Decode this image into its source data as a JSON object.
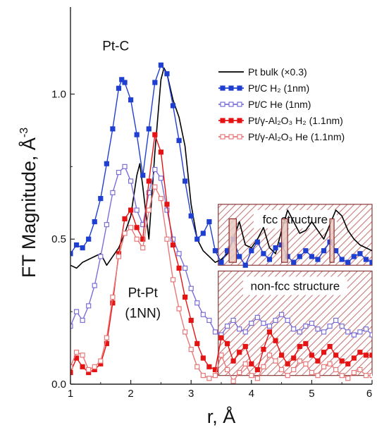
{
  "chart_data": {
    "type": "line",
    "xlabel": "r, Å",
    "ylabel": "FT Magnitude, Å",
    "ylabel_sup": "-3",
    "xlim": [
      1,
      6
    ],
    "ylim": [
      0,
      1.3
    ],
    "x_ticks": [
      1,
      2,
      3,
      4,
      5,
      6
    ],
    "y_ticks": [
      0.0,
      0.5,
      1.0
    ],
    "x_tick_labels": [
      "1",
      "2",
      "3",
      "4",
      "5",
      "6"
    ],
    "y_tick_labels": [
      "0.0",
      "0.5",
      "1.0"
    ],
    "grid": false,
    "legend_position": "upper-right",
    "annotations": [
      {
        "text": "Pt-C",
        "x": 1.75,
        "y": 1.15
      },
      {
        "text": "Pt-Pt",
        "x": 2.2,
        "y": 0.3
      },
      {
        "text": "(1NN)",
        "x": 2.2,
        "y": 0.23
      }
    ],
    "regions": [
      {
        "label": "fcc structure",
        "x0": 3.45,
        "x1": 6.0,
        "y0": 0.41,
        "y1": 0.62
      },
      {
        "label": "non-fcc structure",
        "x0": 3.45,
        "x1": 6.0,
        "y0": 0.03,
        "y1": 0.39
      }
    ],
    "bars": [
      {
        "x0": 3.63,
        "x1": 3.75,
        "y0": 0.42,
        "y1": 0.57
      },
      {
        "x0": 4.5,
        "x1": 4.6,
        "y0": 0.42,
        "y1": 0.57
      },
      {
        "x0": 5.3,
        "x1": 5.37,
        "y0": 0.42,
        "y1": 0.57
      }
    ],
    "series": [
      {
        "name": "Pt bulk (×0.3)",
        "color": "#000000",
        "marker": "none",
        "x": [
          1.0,
          1.1,
          1.2,
          1.3,
          1.4,
          1.5,
          1.6,
          1.7,
          1.8,
          1.9,
          2.0,
          2.1,
          2.15,
          2.2,
          2.3,
          2.4,
          2.5,
          2.55,
          2.6,
          2.7,
          2.8,
          2.9,
          3.0,
          3.1,
          3.2,
          3.3,
          3.4,
          3.5,
          3.6,
          3.7,
          3.8,
          3.9,
          4.0,
          4.1,
          4.2,
          4.3,
          4.4,
          4.5,
          4.6,
          4.7,
          4.8,
          4.9,
          5.0,
          5.1,
          5.2,
          5.3,
          5.4,
          5.5,
          5.6,
          5.7,
          5.8,
          5.9,
          6.0
        ],
        "y": [
          0.41,
          0.4,
          0.42,
          0.43,
          0.44,
          0.45,
          0.41,
          0.44,
          0.47,
          0.52,
          0.58,
          0.72,
          0.76,
          0.68,
          0.5,
          0.8,
          1.05,
          1.09,
          1.07,
          0.98,
          0.92,
          0.82,
          0.62,
          0.5,
          0.46,
          0.44,
          0.42,
          0.43,
          0.45,
          0.5,
          0.56,
          0.48,
          0.47,
          0.5,
          0.54,
          0.47,
          0.45,
          0.53,
          0.6,
          0.56,
          0.52,
          0.53,
          0.56,
          0.53,
          0.5,
          0.55,
          0.6,
          0.58,
          0.53,
          0.5,
          0.48,
          0.47,
          0.46
        ]
      },
      {
        "name": "Pt/C H₂ (1nm)",
        "color": "#1f3fd1",
        "marker": "filled-square",
        "x": [
          1.0,
          1.1,
          1.2,
          1.3,
          1.4,
          1.5,
          1.6,
          1.7,
          1.8,
          1.85,
          1.9,
          2.0,
          2.1,
          2.2,
          2.3,
          2.4,
          2.5,
          2.6,
          2.7,
          2.8,
          2.9,
          3.0,
          3.1,
          3.2,
          3.3,
          3.4,
          3.5,
          3.6,
          3.7,
          3.8,
          3.9,
          4.0,
          4.1,
          4.2,
          4.3,
          4.4,
          4.5,
          4.6,
          4.7,
          4.8,
          4.9,
          5.0,
          5.1,
          5.2,
          5.3,
          5.4,
          5.5,
          5.6,
          5.7,
          5.8,
          5.9,
          6.0
        ],
        "y": [
          0.45,
          0.48,
          0.47,
          0.5,
          0.56,
          0.64,
          0.76,
          0.88,
          1.02,
          1.05,
          1.04,
          0.98,
          0.86,
          0.72,
          0.88,
          1.04,
          1.1,
          1.07,
          0.96,
          0.84,
          0.7,
          0.58,
          0.5,
          0.52,
          0.56,
          0.46,
          0.42,
          0.46,
          0.5,
          0.44,
          0.41,
          0.46,
          0.49,
          0.45,
          0.43,
          0.47,
          0.48,
          0.44,
          0.42,
          0.44,
          0.46,
          0.44,
          0.43,
          0.46,
          0.49,
          0.46,
          0.43,
          0.42,
          0.44,
          0.45,
          0.43,
          0.42
        ]
      },
      {
        "name": "Pt/C He (1nm)",
        "color": "#7a6fd6",
        "marker": "open-square",
        "x": [
          1.0,
          1.1,
          1.2,
          1.3,
          1.4,
          1.5,
          1.6,
          1.7,
          1.8,
          1.9,
          2.0,
          2.1,
          2.2,
          2.3,
          2.4,
          2.5,
          2.6,
          2.7,
          2.8,
          2.9,
          3.0,
          3.1,
          3.2,
          3.3,
          3.4,
          3.5,
          3.6,
          3.7,
          3.8,
          3.9,
          4.0,
          4.1,
          4.2,
          4.3,
          4.4,
          4.5,
          4.6,
          4.7,
          4.8,
          4.9,
          5.0,
          5.1,
          5.2,
          5.3,
          5.4,
          5.5,
          5.6,
          5.7,
          5.8,
          5.9,
          6.0
        ],
        "y": [
          0.2,
          0.25,
          0.22,
          0.27,
          0.34,
          0.44,
          0.55,
          0.66,
          0.73,
          0.75,
          0.7,
          0.6,
          0.55,
          0.66,
          0.74,
          0.71,
          0.6,
          0.5,
          0.45,
          0.4,
          0.33,
          0.28,
          0.24,
          0.22,
          0.18,
          0.17,
          0.2,
          0.22,
          0.19,
          0.18,
          0.21,
          0.23,
          0.21,
          0.2,
          0.22,
          0.24,
          0.22,
          0.19,
          0.18,
          0.2,
          0.21,
          0.19,
          0.18,
          0.2,
          0.22,
          0.2,
          0.18,
          0.17,
          0.18,
          0.19,
          0.17
        ]
      },
      {
        "name": "Pt/γ-Al₂O₃ H₂ (1.1nm)",
        "color": "#e51414",
        "marker": "filled-square",
        "x": [
          1.0,
          1.1,
          1.2,
          1.3,
          1.4,
          1.5,
          1.6,
          1.7,
          1.8,
          1.9,
          2.0,
          2.1,
          2.2,
          2.3,
          2.4,
          2.5,
          2.6,
          2.7,
          2.8,
          2.9,
          3.0,
          3.1,
          3.2,
          3.3,
          3.4,
          3.5,
          3.6,
          3.7,
          3.8,
          3.9,
          4.0,
          4.1,
          4.2,
          4.3,
          4.4,
          4.5,
          4.6,
          4.7,
          4.8,
          4.9,
          5.0,
          5.1,
          5.2,
          5.3,
          5.4,
          5.5,
          5.6,
          5.7,
          5.8,
          5.9,
          6.0
        ],
        "y": [
          0.04,
          0.09,
          0.06,
          0.04,
          0.05,
          0.07,
          0.14,
          0.28,
          0.45,
          0.57,
          0.6,
          0.54,
          0.5,
          0.7,
          0.86,
          0.8,
          0.62,
          0.48,
          0.4,
          0.3,
          0.22,
          0.14,
          0.09,
          0.06,
          0.05,
          0.16,
          0.14,
          0.08,
          0.11,
          0.13,
          0.07,
          0.05,
          0.12,
          0.18,
          0.15,
          0.1,
          0.07,
          0.09,
          0.13,
          0.14,
          0.1,
          0.08,
          0.11,
          0.13,
          0.1,
          0.08,
          0.07,
          0.09,
          0.11,
          0.1,
          0.1
        ]
      },
      {
        "name": "Pt/γ-Al₂O₃ He (1.1nm)",
        "color": "#e87878",
        "marker": "open-square",
        "x": [
          1.0,
          1.1,
          1.2,
          1.3,
          1.4,
          1.5,
          1.6,
          1.7,
          1.8,
          1.9,
          2.0,
          2.1,
          2.2,
          2.3,
          2.4,
          2.5,
          2.6,
          2.7,
          2.8,
          2.9,
          3.0,
          3.1,
          3.2,
          3.3,
          3.4,
          3.5,
          3.6,
          3.7,
          3.8,
          3.9,
          4.0,
          4.1,
          4.2,
          4.3,
          4.4,
          4.5,
          4.6,
          4.7,
          4.8,
          4.9,
          5.0,
          5.1,
          5.2,
          5.3,
          5.4,
          5.5,
          5.6,
          5.7,
          5.8,
          5.9,
          6.0
        ],
        "y": [
          0.06,
          0.11,
          0.1,
          0.05,
          0.06,
          0.08,
          0.16,
          0.3,
          0.44,
          0.52,
          0.54,
          0.5,
          0.47,
          0.6,
          0.68,
          0.64,
          0.5,
          0.36,
          0.26,
          0.18,
          0.12,
          0.06,
          0.03,
          0.02,
          0.03,
          0.1,
          0.05,
          0.01,
          0.04,
          0.07,
          0.03,
          0.02,
          0.06,
          0.1,
          0.08,
          0.05,
          0.03,
          0.05,
          0.08,
          0.07,
          0.04,
          0.03,
          0.06,
          0.07,
          0.05,
          0.03,
          0.02,
          0.04,
          0.05,
          0.03,
          0.03
        ]
      }
    ]
  }
}
